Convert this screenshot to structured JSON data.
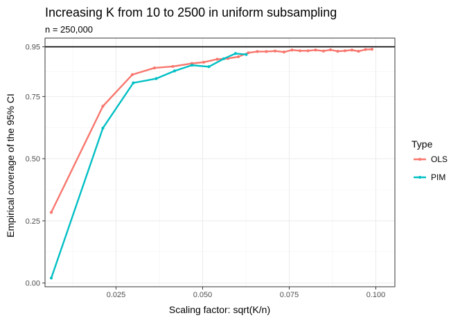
{
  "chart_data": {
    "type": "line",
    "title": "Increasing K from 10 to 2500 in uniform subsampling",
    "subtitle": "n = 250,000",
    "xlabel": "Scaling factor: sqrt(K/n)",
    "ylabel": "Empirical coverage of the 95% CI",
    "xlim": [
      0.0045,
      0.1055
    ],
    "ylim": [
      -0.015,
      0.985
    ],
    "x_ticks": [
      0.025,
      0.05,
      0.075,
      0.1
    ],
    "x_tick_labels": [
      "0.025",
      "0.050",
      "0.075",
      "0.100"
    ],
    "y_ticks": [
      0,
      0.25,
      0.5,
      0.75,
      0.95
    ],
    "y_tick_labels": [
      "0.00",
      "0.25",
      "0.50",
      "0.75",
      "0.95"
    ],
    "reference_line": {
      "y": 0.95,
      "color": "#000000"
    },
    "grid": true,
    "legend": {
      "title": "Type",
      "position": "right"
    },
    "series": [
      {
        "name": "OLS",
        "color": "#F8766D",
        "x": [
          0.0063,
          0.0212,
          0.0297,
          0.0361,
          0.0414,
          0.0469,
          0.0503,
          0.0542,
          0.0573,
          0.0603,
          0.0632,
          0.0658,
          0.0684,
          0.0709,
          0.0735,
          0.0758,
          0.0781,
          0.0804,
          0.0826,
          0.0849,
          0.0869,
          0.089,
          0.0911,
          0.0931,
          0.095,
          0.097,
          0.0989
        ],
        "values": [
          0.284,
          0.711,
          0.838,
          0.865,
          0.871,
          0.883,
          0.888,
          0.9,
          0.903,
          0.91,
          0.926,
          0.931,
          0.931,
          0.933,
          0.929,
          0.937,
          0.934,
          0.934,
          0.937,
          0.933,
          0.938,
          0.932,
          0.934,
          0.937,
          0.932,
          0.939,
          0.94
        ]
      },
      {
        "name": "PIM",
        "color": "#00BFC4",
        "x": [
          0.0063,
          0.0212,
          0.03,
          0.0366,
          0.0419,
          0.0469,
          0.0518,
          0.0561,
          0.0595,
          0.0626
        ],
        "values": [
          0.02,
          0.623,
          0.805,
          0.822,
          0.853,
          0.876,
          0.87,
          0.902,
          0.923,
          0.919
        ]
      }
    ]
  }
}
